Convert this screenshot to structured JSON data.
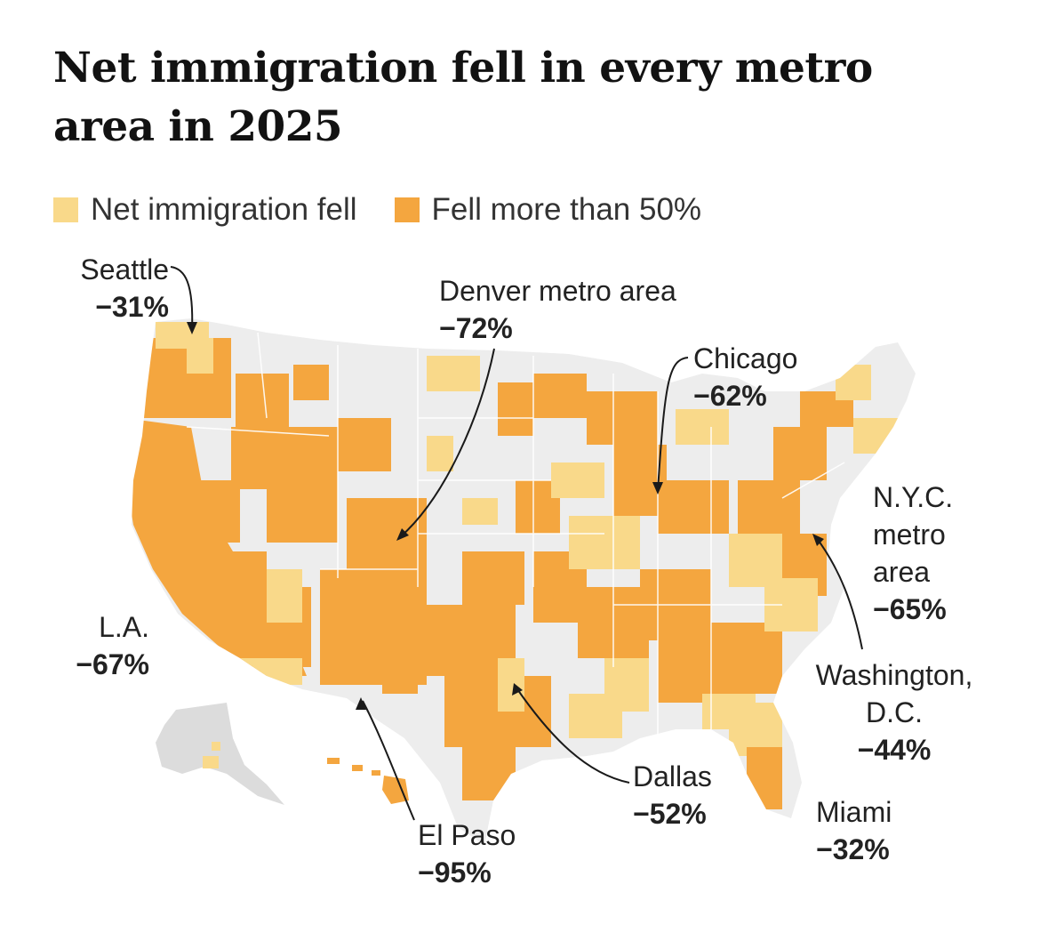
{
  "title": "Net immigration fell in every metro area in 2025",
  "colors": {
    "fell": "#f9d98a",
    "fell_50": "#f4a63f",
    "land": "#ededed",
    "border": "#ffffff",
    "line": "#1a1a1a"
  },
  "legend": [
    {
      "label": "Net immigration fell",
      "color_key": "fell"
    },
    {
      "label": "Fell more than 50%",
      "color_key": "fell_50"
    }
  ],
  "annotations": [
    {
      "id": "seattle",
      "name": "Seattle",
      "value": "−31%"
    },
    {
      "id": "denver",
      "name": "Denver metro area",
      "value": "−72%"
    },
    {
      "id": "chicago",
      "name": "Chicago",
      "value": "−62%"
    },
    {
      "id": "nyc",
      "name": "N.Y.C. metro area",
      "name_lines": [
        "N.Y.C.",
        "metro",
        "area"
      ],
      "value": "−65%"
    },
    {
      "id": "la",
      "name": "L.A.",
      "value": "−67%"
    },
    {
      "id": "dc",
      "name": "Washington, D.C.",
      "name_lines": [
        "Washington,",
        "D.C."
      ],
      "value": "−44%"
    },
    {
      "id": "dallas",
      "name": "Dallas",
      "value": "−52%"
    },
    {
      "id": "miami",
      "name": "Miami",
      "value": "−32%"
    },
    {
      "id": "elpaso",
      "name": "El Paso",
      "value": "−95%"
    }
  ]
}
